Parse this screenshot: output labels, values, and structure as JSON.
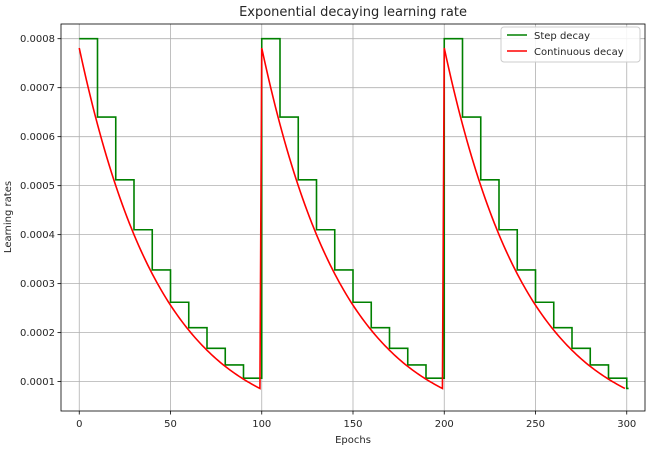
{
  "chart_data": {
    "type": "line",
    "title": "Exponential decaying learning rate",
    "xlabel": "Epochs",
    "ylabel": "Learning rates",
    "xlim": [
      -10,
      310
    ],
    "ylim": [
      4e-05,
      0.00083
    ],
    "xticks": [
      0,
      50,
      100,
      150,
      200,
      250,
      300
    ],
    "xtick_labels": [
      "0",
      "50",
      "100",
      "150",
      "200",
      "250",
      "300"
    ],
    "yticks": [
      0.0001,
      0.0002,
      0.0003,
      0.0004,
      0.0005,
      0.0006,
      0.0007,
      0.0008
    ],
    "ytick_labels": [
      "0.0001",
      "0.0002",
      "0.0003",
      "0.0004",
      "0.0005",
      "0.0006",
      "0.0007",
      "0.0008"
    ],
    "grid": true,
    "legend_position": "top-right",
    "series": [
      {
        "name": "Step decay",
        "color": "#008000",
        "style": "step",
        "x": [
          0,
          10,
          20,
          30,
          40,
          50,
          60,
          70,
          80,
          90,
          100,
          110,
          120,
          130,
          140,
          150,
          160,
          170,
          180,
          190,
          200,
          210,
          220,
          230,
          240,
          250,
          260,
          270,
          280,
          290,
          300
        ],
        "y": [
          0.0008,
          0.00064,
          0.000512,
          0.00041,
          0.000328,
          0.000262,
          0.00021,
          0.000168,
          0.000134,
          0.000107,
          0.0008,
          0.00064,
          0.000512,
          0.00041,
          0.000328,
          0.000262,
          0.00021,
          0.000168,
          0.000134,
          0.000107,
          0.0008,
          0.00064,
          0.000512,
          0.00041,
          0.000328,
          0.000262,
          0.00021,
          0.000168,
          0.000134,
          0.000107,
          8.6e-05
        ]
      },
      {
        "name": "Continuous decay",
        "color": "#ff0000",
        "style": "line",
        "x": [
          0,
          10,
          20,
          30,
          40,
          50,
          60,
          70,
          80,
          90,
          99,
          100,
          110,
          120,
          130,
          140,
          150,
          160,
          170,
          180,
          190,
          199,
          200,
          210,
          220,
          230,
          240,
          250,
          260,
          270,
          280,
          290,
          299
        ],
        "y": [
          0.000781,
          0.000625,
          0.0005,
          0.0004,
          0.00032,
          0.000256,
          0.000205,
          0.000164,
          0.000131,
          0.000105,
          8.6e-05,
          0.000781,
          0.000625,
          0.0005,
          0.0004,
          0.00032,
          0.000256,
          0.000205,
          0.000164,
          0.000131,
          0.000105,
          8.6e-05,
          0.000781,
          0.000625,
          0.0005,
          0.0004,
          0.00032,
          0.000256,
          0.000205,
          0.000164,
          0.000131,
          0.000105,
          8.6e-05
        ]
      }
    ]
  }
}
